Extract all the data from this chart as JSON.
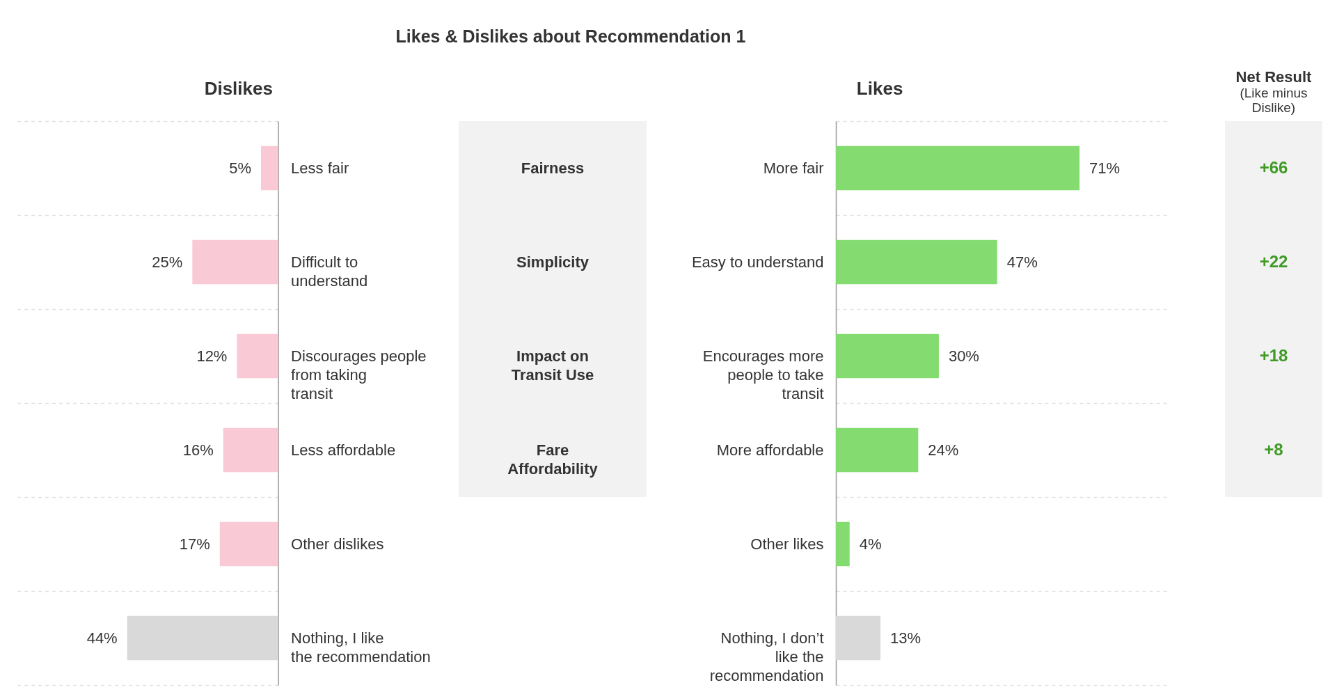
{
  "chart_data": [
    {
      "type": "bar",
      "orientation": "horizontal",
      "title": "Dislikes",
      "categories": [
        "Less fair",
        "Difficult to understand",
        "Discourages people from taking transit",
        "Less affordable",
        "Other dislikes",
        "Nothing, I like the recommendation"
      ],
      "values": [
        5,
        25,
        12,
        16,
        17,
        44
      ],
      "value_labels": [
        "5%",
        "25%",
        "12%",
        "16%",
        "17%",
        "44%"
      ],
      "colors": [
        "#f9c9d5",
        "#f9c9d5",
        "#f9c9d5",
        "#f9c9d5",
        "#f9c9d5",
        "#d9d9d9"
      ],
      "xlim": [
        77,
        0
      ],
      "tick_labels": "y",
      "grid": "y"
    },
    {
      "type": "other",
      "title": "Likes & Dislikes about Recommendation 1",
      "categories": [
        "Fairness",
        "Simplicity",
        "Impact on Transit Use",
        "Fare Affordability"
      ]
    },
    {
      "type": "bar",
      "orientation": "horizontal",
      "title": "Likes",
      "categories": [
        "More fair",
        "Easy to understand",
        "Encourages more people to take transit",
        "More affordable",
        "Other likes",
        "Nothing, I don’t like the recommendation"
      ],
      "values": [
        71,
        47,
        30,
        24,
        4,
        13
      ],
      "value_labels": [
        "71%",
        "47%",
        "30%",
        "24%",
        "4%",
        "13%"
      ],
      "colors": [
        "#84db6f",
        "#84db6f",
        "#84db6f",
        "#84db6f",
        "#84db6f",
        "#d9d9d9"
      ],
      "xlim": [
        0,
        97
      ],
      "tick_labels": "y",
      "grid": "y"
    },
    {
      "type": "other",
      "title": "Net Result",
      "subtitle": "(Like minus Dislike)",
      "values": [
        66,
        22,
        18,
        8
      ],
      "value_labels": [
        "+66",
        "+22",
        "+18",
        "+8"
      ],
      "color": "#3f9a26"
    }
  ]
}
